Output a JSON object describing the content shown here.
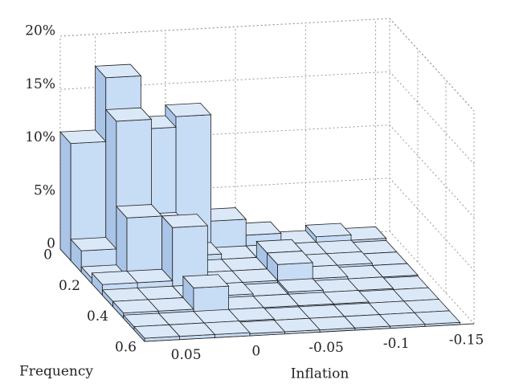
{
  "chart_data": {
    "type": "bar3d",
    "xlabel": "Inflation",
    "ylabel": "Frequency",
    "x": [
      0.0625,
      0.0375,
      0.0125,
      -0.0125,
      -0.0375,
      -0.0625,
      -0.0875,
      -0.1125,
      -0.1375
    ],
    "y": [
      0.0375,
      0.1125,
      0.1875,
      0.2625,
      0.3375,
      0.4125,
      0.4875,
      0.5625
    ],
    "values": [
      [
        11,
        17,
        12,
        13,
        3,
        1.5,
        0.5,
        1,
        0.5
      ],
      [
        2,
        14,
        4,
        1,
        0.5,
        0.5,
        0.5,
        0.5,
        0.3
      ],
      [
        0.5,
        6,
        2,
        0.5,
        0.5,
        2,
        0.5,
        0.5,
        0.3
      ],
      [
        1,
        1,
        6,
        0.5,
        0.5,
        2,
        0.5,
        0.3,
        0.3
      ],
      [
        0.5,
        0.5,
        0.5,
        0.5,
        0.3,
        0.5,
        0.3,
        0.3,
        0.2
      ],
      [
        0.5,
        0.5,
        2.5,
        0.3,
        0.3,
        0.3,
        0.3,
        0.2,
        0.2
      ],
      [
        0.3,
        0.3,
        0.3,
        0.3,
        0.2,
        0.2,
        0.2,
        0.2,
        0.2
      ],
      [
        0.3,
        0.3,
        0.3,
        0.2,
        0.2,
        0.2,
        0.2,
        0.2,
        0.2
      ]
    ],
    "color": "#c7dcf5",
    "xlim": [
      0.075,
      -0.16
    ],
    "xticks": [
      0.05,
      0,
      -0.05,
      -0.1,
      -0.15
    ],
    "ylim": [
      0,
      0.6
    ],
    "yticks": [
      0,
      0.2,
      0.4,
      0.6
    ],
    "zlim": [
      0,
      20
    ],
    "zticks": [
      0,
      {
        "value": 5,
        "label": "5%"
      },
      {
        "value": 10,
        "label": "10%"
      },
      {
        "value": 15,
        "label": "15%"
      },
      {
        "value": 20,
        "label": "20%"
      }
    ],
    "grid": true
  }
}
